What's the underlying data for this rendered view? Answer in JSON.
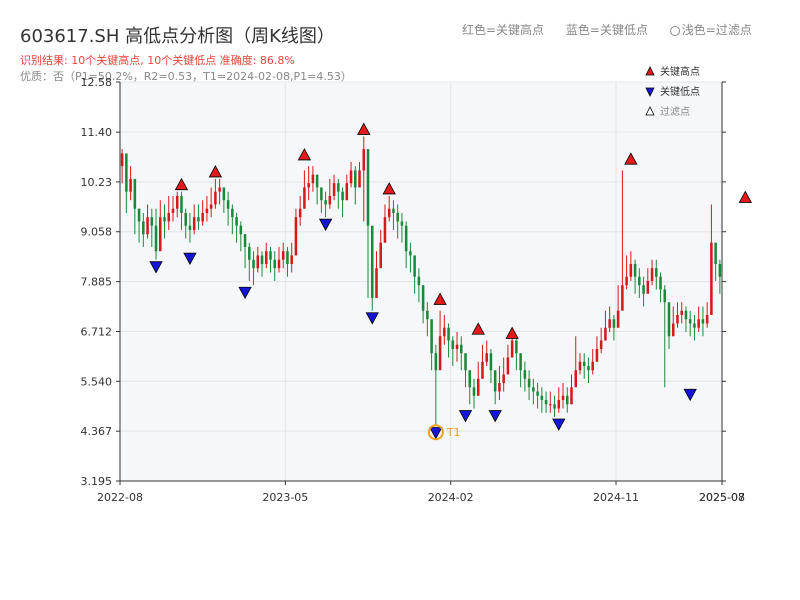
{
  "title": "603617.SH 高低点分析图（周K线图）",
  "result": "识别结果: 10个关键高点, 10个关键低点   准确度: 86.8%",
  "quality": "优质：否（P1=50.2%，R2=0.53，T1=2024-02-08,P1=4.53）",
  "top_legend": {
    "red": "红色=关键高点",
    "blue": "蓝色=关键低点",
    "light": "浅色=过滤点"
  },
  "colors": {
    "up": "#d7191c",
    "down": "#1a8a3a",
    "high_marker": "#e31a1c",
    "low_marker": "#1515d8",
    "t1_ring": "#f0a020",
    "plot_bg": "#f5f7fa"
  },
  "chart_data": {
    "type": "candlestick",
    "title": "603617.SH 高低点分析图（周K线图）",
    "y_ticks": [
      "3.195",
      "4.367",
      "5.540",
      "6.712",
      "7.885",
      "9.058",
      "10.23",
      "11.40",
      "12.58"
    ],
    "x_ticks": [
      "2022-08",
      "2023-05",
      "2024-02",
      "2024-11",
      "2025-07",
      "2025-08"
    ],
    "ylim": [
      3.195,
      12.58
    ],
    "legend": {
      "placement": "top-right",
      "items": [
        "关键高点",
        "关键低点",
        "过滤点"
      ]
    },
    "annotation": "T1",
    "weekly_close": [
      10.9,
      10.0,
      10.3,
      9.6,
      9.3,
      9.0,
      9.4,
      9.2,
      8.6,
      9.4,
      9.3,
      9.5,
      9.6,
      9.9,
      9.5,
      9.2,
      9.1,
      9.4,
      9.3,
      9.5,
      9.6,
      9.7,
      10.0,
      10.1,
      9.8,
      9.6,
      9.4,
      9.2,
      9.0,
      8.7,
      8.4,
      8.2,
      8.5,
      8.3,
      8.6,
      8.4,
      8.2,
      8.4,
      8.6,
      8.3,
      8.5,
      9.4,
      9.6,
      10.1,
      10.2,
      10.4,
      10.1,
      9.8,
      9.7,
      9.9,
      10.2,
      10.0,
      9.8,
      10.2,
      10.5,
      10.1,
      10.5,
      11.0,
      9.2,
      7.5,
      8.2,
      8.8,
      9.4,
      9.6,
      9.5,
      9.3,
      9.2,
      8.6,
      8.5,
      8.0,
      7.8,
      7.2,
      7.0,
      6.2,
      5.8,
      6.6,
      6.8,
      6.5,
      6.3,
      6.4,
      6.2,
      5.8,
      5.4,
      5.2,
      5.6,
      6.0,
      6.2,
      5.8,
      5.3,
      5.5,
      5.7,
      6.1,
      6.5,
      6.2,
      5.8,
      5.6,
      5.4,
      5.3,
      5.2,
      5.1,
      5.0,
      5.0,
      4.9,
      5.1,
      5.2,
      5.0,
      5.4,
      5.8,
      6.0,
      5.9,
      5.8,
      6.0,
      6.3,
      6.5,
      6.8,
      7.0,
      6.8,
      7.2,
      7.8,
      8.0,
      8.3,
      8.0,
      7.8,
      7.6,
      7.9,
      8.2,
      8.0,
      7.7,
      7.4,
      6.6,
      6.9,
      7.1,
      7.2,
      7.0,
      6.9,
      6.8,
      7.0,
      6.9,
      7.1,
      8.8,
      8.3,
      8.0
    ],
    "weekly_high": [
      11.0,
      10.4,
      10.6,
      10.1,
      9.6,
      9.5,
      9.7,
      9.6,
      9.6,
      9.8,
      9.7,
      9.9,
      9.9,
      10.0,
      10.0,
      9.6,
      9.5,
      9.7,
      9.7,
      9.8,
      9.9,
      10.1,
      10.3,
      10.3,
      10.1,
      10.0,
      9.7,
      9.5,
      9.3,
      9.0,
      8.8,
      8.6,
      8.7,
      8.6,
      8.8,
      8.7,
      8.6,
      8.7,
      8.8,
      8.7,
      8.8,
      9.6,
      9.9,
      10.5,
      10.6,
      10.6,
      10.4,
      10.1,
      10.0,
      10.3,
      10.4,
      10.3,
      10.1,
      10.4,
      10.7,
      10.6,
      10.7,
      11.3,
      11.0,
      8.2,
      8.6,
      9.1,
      9.7,
      9.9,
      9.8,
      9.7,
      9.5,
      9.3,
      8.8,
      8.5,
      8.2,
      7.8,
      7.4,
      6.8,
      6.4,
      7.2,
      7.1,
      6.9,
      6.6,
      6.7,
      6.6,
      6.2,
      5.8,
      5.6,
      6.0,
      6.4,
      6.5,
      6.3,
      5.7,
      5.9,
      6.1,
      6.4,
      6.8,
      6.6,
      6.2,
      6.0,
      5.8,
      5.6,
      5.5,
      5.4,
      5.3,
      5.3,
      5.2,
      5.4,
      5.5,
      5.4,
      5.7,
      6.6,
      6.2,
      6.2,
      6.1,
      6.3,
      6.6,
      6.8,
      7.2,
      7.3,
      7.1,
      7.8,
      10.5,
      8.5,
      8.6,
      8.4,
      8.2,
      8.0,
      8.2,
      8.4,
      8.4,
      8.1,
      7.8,
      7.2,
      7.3,
      7.4,
      7.4,
      7.3,
      7.2,
      7.1,
      7.3,
      7.3,
      7.4,
      9.7,
      8.8,
      8.4
    ],
    "weekly_low": [
      10.2,
      9.5,
      9.8,
      9.0,
      8.8,
      8.7,
      8.9,
      8.7,
      8.4,
      8.8,
      8.9,
      9.1,
      9.3,
      9.4,
      9.1,
      8.9,
      8.8,
      9.0,
      9.1,
      9.2,
      9.3,
      9.4,
      9.6,
      9.7,
      9.5,
      9.2,
      9.0,
      8.8,
      8.6,
      8.2,
      7.9,
      7.8,
      8.1,
      8.0,
      8.2,
      8.1,
      7.9,
      8.1,
      8.2,
      8.0,
      8.1,
      8.8,
      9.2,
      9.6,
      9.8,
      10.0,
      9.7,
      9.5,
      9.4,
      9.6,
      9.8,
      9.6,
      9.4,
      9.8,
      10.1,
      9.7,
      10.1,
      9.3,
      7.5,
      7.2,
      7.6,
      8.4,
      9.0,
      9.3,
      9.1,
      8.9,
      8.8,
      8.2,
      8.1,
      7.6,
      7.4,
      6.9,
      6.6,
      5.8,
      4.5,
      6.1,
      6.4,
      6.1,
      5.9,
      6.0,
      5.8,
      5.4,
      5.0,
      4.9,
      5.2,
      5.6,
      5.9,
      5.5,
      5.0,
      5.1,
      5.3,
      5.7,
      6.1,
      5.8,
      5.4,
      5.3,
      5.1,
      5.0,
      4.9,
      4.8,
      4.8,
      4.8,
      4.7,
      4.8,
      4.9,
      4.8,
      5.0,
      5.5,
      5.7,
      5.6,
      5.5,
      5.7,
      6.0,
      6.2,
      6.5,
      6.7,
      6.5,
      6.8,
      7.4,
      7.7,
      7.9,
      7.6,
      7.5,
      7.3,
      7.6,
      7.8,
      7.7,
      7.4,
      5.4,
      6.3,
      6.6,
      6.8,
      6.9,
      6.7,
      6.6,
      6.5,
      6.7,
      6.6,
      6.8,
      7.3,
      7.9,
      7.6
    ],
    "key_highs": [
      {
        "week": 14,
        "y": 10.0
      },
      {
        "week": 22,
        "y": 10.3
      },
      {
        "week": 43,
        "y": 10.7
      },
      {
        "week": 57,
        "y": 11.3
      },
      {
        "week": 63,
        "y": 9.9
      },
      {
        "week": 75,
        "y": 7.3
      },
      {
        "week": 84,
        "y": 6.6
      },
      {
        "week": 92,
        "y": 6.5
      },
      {
        "week": 120,
        "y": 10.6
      },
      {
        "week": 147,
        "y": 9.7
      }
    ],
    "key_lows": [
      {
        "week": 8,
        "y": 8.4
      },
      {
        "week": 16,
        "y": 8.6
      },
      {
        "week": 29,
        "y": 7.8
      },
      {
        "week": 48,
        "y": 9.4
      },
      {
        "week": 59,
        "y": 7.2
      },
      {
        "week": 74,
        "y": 4.5
      },
      {
        "week": 81,
        "y": 4.9
      },
      {
        "week": 88,
        "y": 4.9
      },
      {
        "week": 103,
        "y": 4.7
      },
      {
        "week": 134,
        "y": 5.4
      }
    ],
    "t1_point": {
      "week": 74,
      "y": 4.53
    }
  }
}
